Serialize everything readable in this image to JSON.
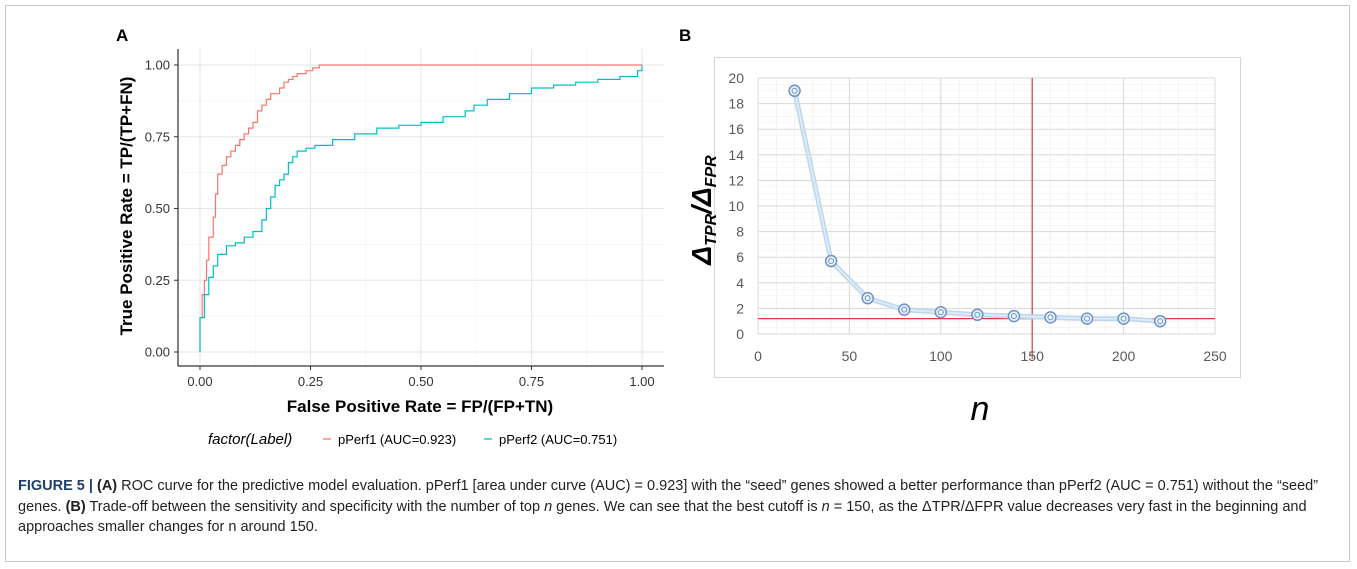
{
  "panels": {
    "a": "A",
    "b": "B"
  },
  "chart_data": [
    {
      "type": "line",
      "panel": "A",
      "xlabel": "False Positive Rate = FP/(FP+TN)",
      "ylabel": "True Positive Rate = TP/(TP+FN)",
      "xlim": [
        0,
        1
      ],
      "ylim": [
        0,
        1
      ],
      "xticks": [
        "0.00",
        "0.25",
        "0.50",
        "0.75",
        "1.00"
      ],
      "yticks": [
        "0.00",
        "0.25",
        "0.50",
        "0.75",
        "1.00"
      ],
      "grid": true,
      "legend": {
        "position": "bottom",
        "title": "factor(Label)",
        "entries": [
          "pPerf1 (AUC=0.923)",
          "pPerf2 (AUC=0.751)"
        ]
      },
      "series": [
        {
          "name": "pPerf1 (AUC=0.923)",
          "color": "#f8766d",
          "x": [
            0,
            0,
            0.005,
            0.005,
            0.01,
            0.01,
            0.015,
            0.015,
            0.02,
            0.02,
            0.03,
            0.03,
            0.035,
            0.035,
            0.04,
            0.04,
            0.05,
            0.05,
            0.06,
            0.06,
            0.07,
            0.07,
            0.08,
            0.08,
            0.09,
            0.09,
            0.1,
            0.1,
            0.11,
            0.11,
            0.12,
            0.12,
            0.13,
            0.13,
            0.14,
            0.14,
            0.15,
            0.15,
            0.16,
            0.16,
            0.18,
            0.18,
            0.19,
            0.19,
            0.2,
            0.2,
            0.21,
            0.21,
            0.22,
            0.22,
            0.24,
            0.24,
            0.255,
            0.255,
            0.27,
            0.27,
            1.0
          ],
          "y": [
            0,
            0.12,
            0.12,
            0.2,
            0.2,
            0.25,
            0.25,
            0.32,
            0.32,
            0.4,
            0.4,
            0.47,
            0.47,
            0.55,
            0.55,
            0.62,
            0.62,
            0.65,
            0.65,
            0.68,
            0.68,
            0.7,
            0.7,
            0.72,
            0.72,
            0.74,
            0.74,
            0.76,
            0.76,
            0.78,
            0.78,
            0.8,
            0.8,
            0.84,
            0.84,
            0.86,
            0.86,
            0.88,
            0.88,
            0.9,
            0.9,
            0.92,
            0.92,
            0.94,
            0.94,
            0.95,
            0.95,
            0.96,
            0.96,
            0.97,
            0.97,
            0.98,
            0.98,
            0.99,
            0.99,
            1.0,
            1.0
          ]
        },
        {
          "name": "pPerf2 (AUC=0.751)",
          "color": "#00bfc4",
          "x": [
            0,
            0,
            0.01,
            0.01,
            0.02,
            0.02,
            0.03,
            0.03,
            0.04,
            0.04,
            0.06,
            0.06,
            0.08,
            0.08,
            0.1,
            0.1,
            0.12,
            0.12,
            0.14,
            0.14,
            0.15,
            0.15,
            0.16,
            0.16,
            0.17,
            0.17,
            0.18,
            0.18,
            0.19,
            0.19,
            0.2,
            0.2,
            0.21,
            0.21,
            0.22,
            0.22,
            0.24,
            0.24,
            0.26,
            0.26,
            0.3,
            0.3,
            0.35,
            0.35,
            0.4,
            0.4,
            0.45,
            0.45,
            0.5,
            0.5,
            0.55,
            0.55,
            0.6,
            0.6,
            0.62,
            0.62,
            0.65,
            0.65,
            0.7,
            0.7,
            0.75,
            0.75,
            0.8,
            0.8,
            0.85,
            0.85,
            0.9,
            0.9,
            0.95,
            0.95,
            0.99,
            0.99,
            1.0,
            1.0
          ],
          "y": [
            0,
            0.12,
            0.12,
            0.2,
            0.2,
            0.26,
            0.26,
            0.3,
            0.3,
            0.34,
            0.34,
            0.37,
            0.37,
            0.38,
            0.38,
            0.4,
            0.4,
            0.42,
            0.42,
            0.46,
            0.46,
            0.5,
            0.5,
            0.54,
            0.54,
            0.58,
            0.58,
            0.6,
            0.6,
            0.62,
            0.62,
            0.66,
            0.66,
            0.68,
            0.68,
            0.7,
            0.7,
            0.71,
            0.71,
            0.72,
            0.72,
            0.74,
            0.74,
            0.76,
            0.76,
            0.78,
            0.78,
            0.79,
            0.79,
            0.8,
            0.8,
            0.82,
            0.82,
            0.84,
            0.84,
            0.86,
            0.86,
            0.88,
            0.88,
            0.9,
            0.9,
            0.92,
            0.92,
            0.93,
            0.93,
            0.94,
            0.94,
            0.95,
            0.95,
            0.96,
            0.96,
            0.98,
            0.98,
            1.0
          ]
        }
      ]
    },
    {
      "type": "line",
      "panel": "B",
      "xlabel": "n",
      "ylabel": "ΔTPR/ΔFPR",
      "xlim": [
        0,
        250
      ],
      "ylim": [
        0,
        20
      ],
      "xticks": [
        "0",
        "50",
        "100",
        "150",
        "200",
        "250"
      ],
      "yticks": [
        "0",
        "2",
        "4",
        "6",
        "8",
        "10",
        "12",
        "14",
        "16",
        "18",
        "20"
      ],
      "grid": true,
      "reference_lines": {
        "x": 150,
        "y": 1.2
      },
      "series": [
        {
          "x": [
            20,
            40,
            60,
            80,
            100,
            120,
            140,
            160,
            180,
            200,
            220
          ],
          "y": [
            19.0,
            5.7,
            2.8,
            1.9,
            1.7,
            1.5,
            1.4,
            1.3,
            1.2,
            1.2,
            1.0
          ]
        }
      ]
    }
  ],
  "caption": {
    "lead": "FIGURE 5 | ",
    "a_tag": "(A)",
    "a_text": " ROC curve for the predictive model evaluation. pPerf1 [area under curve (AUC) = 0.923] with the “seed” genes showed a better performance than pPerf2 (AUC = 0.751) without the “seed” genes. ",
    "b_tag": "(B)",
    "b_text1": " Trade-off between the sensitivity and specificity with the number of top ",
    "n1": "n",
    "b_text2": " genes. We can see that the best cutoff is ",
    "n2": "n",
    "b_text3": " = 150, as the ΔTPR/ΔFPR value decreases very fast in the beginning and approaches smaller changes for n around 150."
  }
}
